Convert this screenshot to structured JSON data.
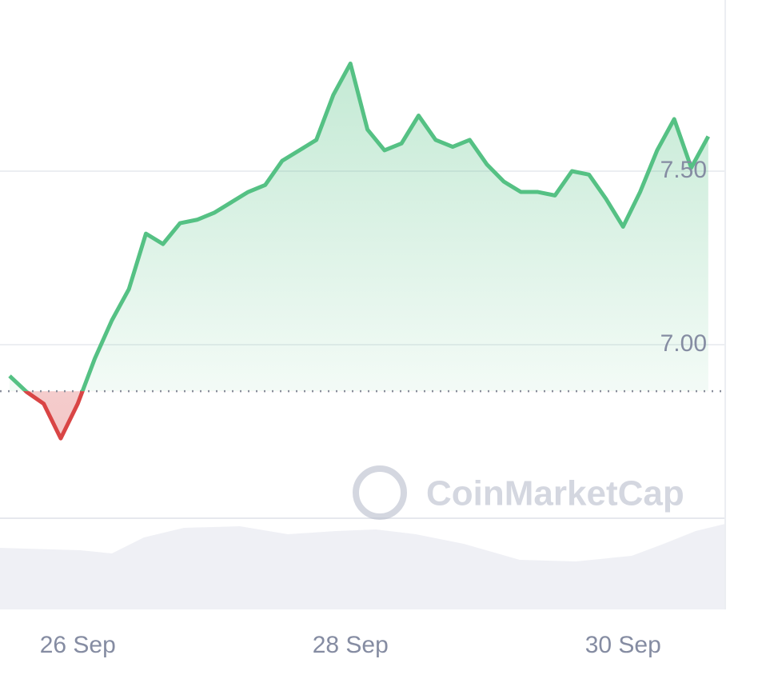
{
  "chart_data": {
    "type": "line",
    "watermark": "CoinMarketCap",
    "categories": [
      null,
      null,
      null,
      null,
      "26 Sep",
      null,
      null,
      null,
      null,
      null,
      null,
      null,
      null,
      null,
      null,
      null,
      null,
      null,
      null,
      null,
      "28 Sep",
      null,
      null,
      null,
      null,
      null,
      null,
      null,
      null,
      null,
      null,
      null,
      null,
      null,
      null,
      null,
      "30 Sep",
      null,
      null,
      null,
      null,
      null
    ],
    "series": [
      {
        "color": "#55c184",
        "down_color": "#d94545",
        "values": [
          6.91,
          6.864,
          6.83,
          6.73,
          6.83,
          6.96,
          7.07,
          7.16,
          7.32,
          7.29,
          7.35,
          7.36,
          7.38,
          7.41,
          7.44,
          7.46,
          7.53,
          7.56,
          7.59,
          7.72,
          7.81,
          7.62,
          7.56,
          7.58,
          7.66,
          7.59,
          7.57,
          7.59,
          7.52,
          7.47,
          7.44,
          7.44,
          7.43,
          7.5,
          7.49,
          7.42,
          7.34,
          7.44,
          7.56,
          7.65,
          7.51,
          7.6
        ]
      }
    ],
    "baseline": 6.866,
    "ylim": [
      6.5,
      8.0
    ],
    "yticks": [
      {
        "value": 7,
        "label": "7.00"
      },
      {
        "value": 7.5,
        "label": "7.50"
      }
    ],
    "grid": true
  }
}
